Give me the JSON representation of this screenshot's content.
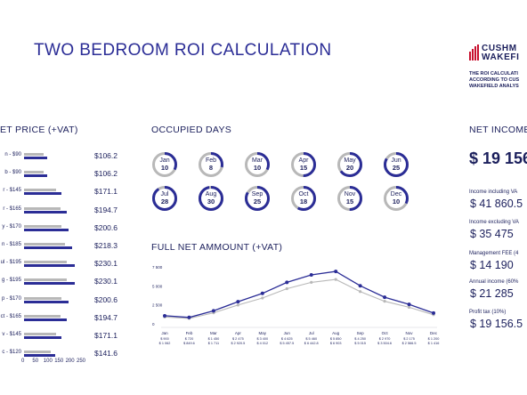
{
  "title": "TWO BEDROOM ROI CALCULATION",
  "brand": {
    "line1": "CUSHM",
    "line2": "WAKEFI",
    "disclaimer": [
      "THE ROI CALCULATI",
      "ACCORDING TO CUS",
      "WAKEFIELD ANALYS"
    ],
    "colors": {
      "accent": "#2b2d96",
      "secondary": "#b8b8b8",
      "logo": "#c8102e"
    }
  },
  "net_price": {
    "heading": "ET PRICE (+VAT)",
    "rows": [
      {
        "label": "n - $90",
        "value": "$106.2",
        "gray": 90,
        "blue": 106.2
      },
      {
        "label": "b - $90",
        "value": "$106.2",
        "gray": 90,
        "blue": 106.2
      },
      {
        "label": "r - $145",
        "value": "$171.1",
        "gray": 145,
        "blue": 171.1
      },
      {
        "label": "r - $165",
        "value": "$194.7",
        "gray": 165,
        "blue": 194.7
      },
      {
        "label": "y - $170",
        "value": "$200.6",
        "gray": 170,
        "blue": 200.6
      },
      {
        "label": "n - $185",
        "value": "$218.3",
        "gray": 185,
        "blue": 218.3
      },
      {
        "label": "ul - $195",
        "value": "$230.1",
        "gray": 195,
        "blue": 230.1
      },
      {
        "label": "g - $195",
        "value": "$230.1",
        "gray": 195,
        "blue": 230.1
      },
      {
        "label": "p - $170",
        "value": "$200.6",
        "gray": 170,
        "blue": 200.6
      },
      {
        "label": "ct - $165",
        "value": "$194.7",
        "gray": 165,
        "blue": 194.7
      },
      {
        "label": "v - $145",
        "value": "$171.1",
        "gray": 145,
        "blue": 171.1
      },
      {
        "label": "c - $120",
        "value": "$141.6",
        "gray": 120,
        "blue": 141.6
      }
    ],
    "axis_ticks": [
      "0",
      "50",
      "100",
      "150",
      "200",
      "250"
    ],
    "axis_max": 250
  },
  "occupied": {
    "heading": "OCCUPIED DAYS",
    "months": [
      {
        "month": "Jan",
        "days": "10",
        "n": 10,
        "total": 31
      },
      {
        "month": "Feb",
        "days": "8",
        "n": 8,
        "total": 28
      },
      {
        "month": "Mar",
        "days": "10",
        "n": 10,
        "total": 31
      },
      {
        "month": "Apr",
        "days": "15",
        "n": 15,
        "total": 30
      },
      {
        "month": "May",
        "days": "20",
        "n": 20,
        "total": 31
      },
      {
        "month": "Jun",
        "days": "25",
        "n": 25,
        "total": 30
      },
      {
        "month": "Jul",
        "days": "28",
        "n": 28,
        "total": 31
      },
      {
        "month": "Aug",
        "days": "30",
        "n": 30,
        "total": 31
      },
      {
        "month": "Sep",
        "days": "25",
        "n": 25,
        "total": 30
      },
      {
        "month": "Oct",
        "days": "18",
        "n": 18,
        "total": 31
      },
      {
        "month": "Nov",
        "days": "15",
        "n": 15,
        "total": 30
      },
      {
        "month": "Dec",
        "days": "10",
        "n": 10,
        "total": 31
      }
    ]
  },
  "chart_data": {
    "type": "line",
    "title": "FULL NET AMMOUNT (+VAT)",
    "x": [
      "Jan",
      "Feb",
      "Mar",
      "Apr",
      "May",
      "Jun",
      "Jul",
      "Aug",
      "Sep",
      "Oct",
      "Nov",
      "Dec"
    ],
    "value_labels_line1": [
      "$ 900",
      "$ 720",
      "$ 1 450",
      "$ 2 475",
      "$ 3 400",
      "$ 4 625",
      "$ 5 460",
      "$ 5 850",
      "$ 4 250",
      "$ 2 970",
      "$ 2 175",
      "$ 1 200"
    ],
    "value_labels_line2": [
      "$ 1 062",
      "$ 849.6",
      "$ 1 711",
      "$ 2 920.5",
      "$ 4 012",
      "$ 5 457.5",
      "$ 6 442.8",
      "$ 6 903",
      "$ 5 015",
      "$ 3 504.6",
      "$ 2 566.5",
      "$ 1 416"
    ],
    "series": [
      {
        "values": [
          900,
          720,
          1450,
          2475,
          3400,
          4625,
          5460,
          5850,
          4250,
          2970,
          2175,
          1200
        ],
        "color": "#b8b8b8"
      },
      {
        "values": [
          1062,
          849.6,
          1711,
          2920.5,
          4012,
          5457.5,
          6442.8,
          6903,
          5015,
          3504.6,
          2566.5,
          1416
        ],
        "color": "#2b2d96"
      }
    ],
    "y_ticks": [
      "7 500",
      "5 000",
      "2 500",
      "0"
    ],
    "ylim": [
      0,
      7500
    ],
    "grid": false
  },
  "net_income": {
    "heading": "NET INCOME",
    "big_value": "$ 19 156",
    "items": [
      {
        "label": "Income including VA",
        "value": "$ 41 860.5"
      },
      {
        "label": "Income excluding VA",
        "value": "$ 35 475"
      },
      {
        "label": "Management FEE (4",
        "value": "$ 14 190"
      },
      {
        "label": "Annual income (60%",
        "value": "$ 21 285"
      },
      {
        "label": "Profit tax (10%)",
        "value": "$ 19 156.5"
      }
    ]
  }
}
